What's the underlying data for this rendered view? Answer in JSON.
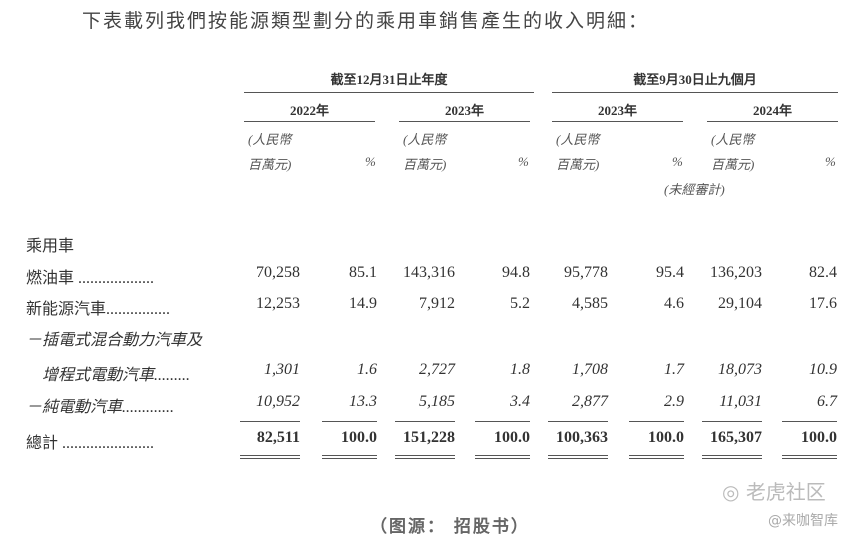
{
  "title": "下表載列我們按能源類型劃分的乘用車銷售產生的收入明細：",
  "headers": {
    "period_year": "截至12月31日止年度",
    "period_9m": "截至9月30日止九個月",
    "years": [
      "2022年",
      "2023年",
      "2023年",
      "2024年"
    ],
    "unit_line1": "(人民幣",
    "unit_line2": "百萬元)",
    "pct": "%",
    "unaudited": "(未經審計)"
  },
  "section": "乘用車",
  "rows": [
    {
      "label": "燃油車 ...................",
      "values": [
        "70,258",
        "85.1",
        "143,316",
        "94.8",
        "95,778",
        "95.4",
        "136,203",
        "82.4"
      ]
    },
    {
      "label": "新能源汽車................",
      "values": [
        "12,253",
        "14.9",
        "7,912",
        "5.2",
        "4,585",
        "4.6",
        "29,104",
        "17.6"
      ]
    },
    {
      "label": "－插電式混合動力汽車及",
      "values": []
    },
    {
      "label": "增程式電動汽車.........",
      "values": [
        "1,301",
        "1.6",
        "2,727",
        "1.8",
        "1,708",
        "1.7",
        "18,073",
        "10.9"
      ]
    },
    {
      "label": "－純電動汽車.............",
      "values": [
        "10,952",
        "13.3",
        "5,185",
        "3.4",
        "2,877",
        "2.9",
        "11,031",
        "6.7"
      ]
    },
    {
      "label": "總計 .......................",
      "values": [
        "82,511",
        "100.0",
        "151,228",
        "100.0",
        "100,363",
        "100.0",
        "165,307",
        "100.0"
      ]
    }
  ],
  "source": "（图源： 招股书）",
  "watermark": {
    "brand": "老虎社区",
    "handle": "@来咖智库"
  }
}
